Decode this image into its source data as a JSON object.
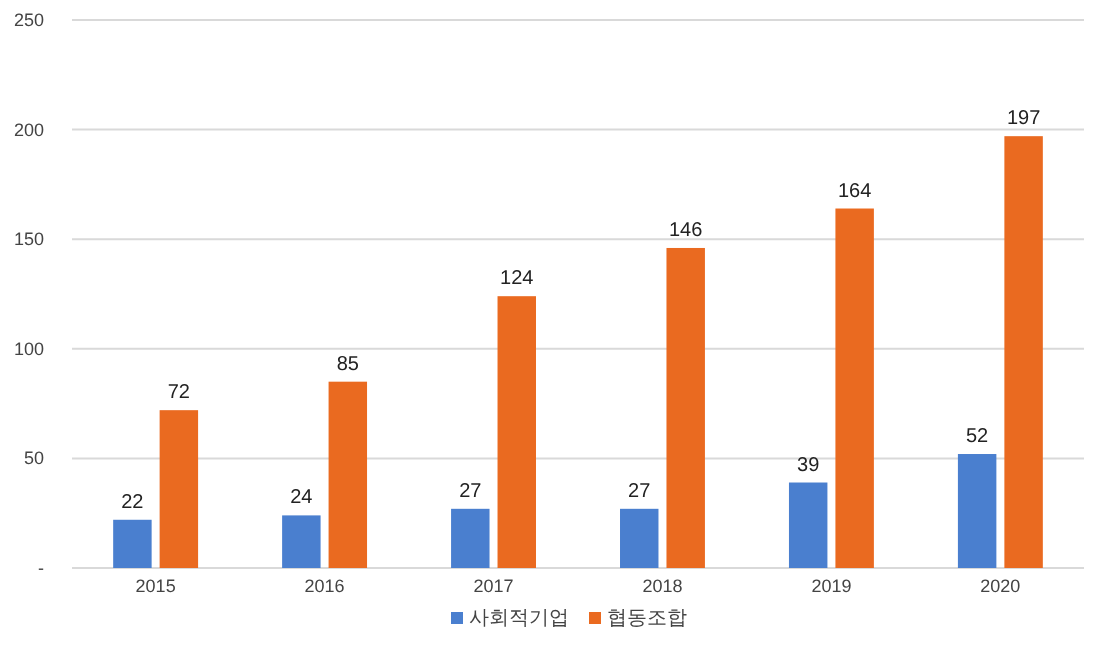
{
  "chart_data": {
    "type": "bar",
    "categories": [
      "2015",
      "2016",
      "2017",
      "2018",
      "2019",
      "2020"
    ],
    "series": [
      {
        "name": "사회적기업",
        "color": "#4a7fcf",
        "values": [
          22,
          24,
          27,
          27,
          39,
          52
        ]
      },
      {
        "name": "협동조합",
        "color": "#ea6a20",
        "values": [
          72,
          85,
          124,
          146,
          164,
          197
        ]
      }
    ],
    "ylim": [
      0,
      250
    ],
    "yticks": [
      {
        "value": 0,
        "label": "-"
      },
      50,
      100,
      150,
      200,
      250
    ],
    "grid": "y",
    "legend": "bottom",
    "data_labels": true
  }
}
